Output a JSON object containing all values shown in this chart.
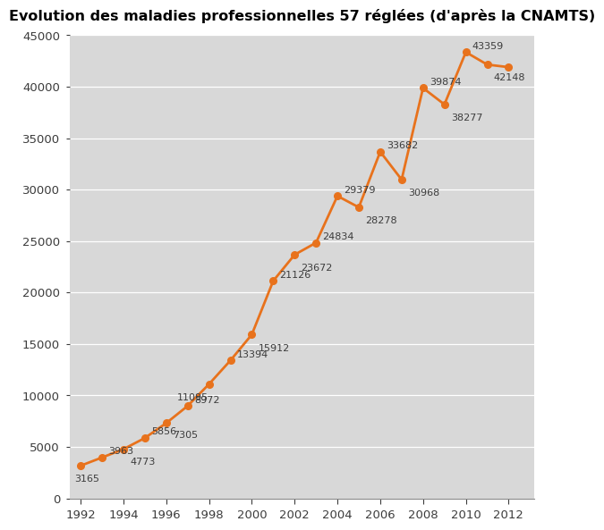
{
  "title": "Evolution des maladies professionnelles 57 réglées (d'après la CNAMTS)",
  "years": [
    1992,
    1993,
    1994,
    1995,
    1996,
    1997,
    1998,
    1999,
    2000,
    2001,
    2002,
    2003,
    2004,
    2005,
    2006,
    2007,
    2008,
    2009,
    2010,
    2011,
    2012
  ],
  "values": [
    3165,
    3963,
    4773,
    5856,
    7305,
    8972,
    11095,
    13394,
    15912,
    21126,
    23672,
    24834,
    29379,
    28278,
    33682,
    30968,
    39874,
    38277,
    43359,
    42148,
    41900
  ],
  "labels": [
    "3165",
    "3963",
    "4773",
    "5856",
    "7305",
    "8972",
    "11095",
    "13394",
    "15912",
    "21126",
    "23672",
    "24834",
    "29379",
    "28278",
    "33682",
    "30968",
    "39874",
    "38277",
    "43359",
    "42148",
    null
  ],
  "label_offsets_x": [
    -0.3,
    0.3,
    0.3,
    0.3,
    0.3,
    0.3,
    -1.5,
    0.3,
    0.3,
    0.3,
    0.3,
    0.3,
    0.3,
    0.3,
    0.3,
    0.3,
    0.3,
    0.3,
    0.3,
    0.3,
    0
  ],
  "label_offsets_y": [
    -1300,
    600,
    -1200,
    600,
    -1200,
    600,
    -1300,
    600,
    -1300,
    600,
    -1300,
    600,
    600,
    -1300,
    600,
    -1300,
    600,
    -1300,
    600,
    -1300,
    0
  ],
  "line_color": "#E8721C",
  "marker_color": "#E8721C",
  "bg_color": "#D8D8D8",
  "text_color": "#3C3C3C",
  "title_fontsize": 11.5,
  "label_fontsize": 8,
  "tick_fontsize": 9.5,
  "ylim": [
    0,
    45000
  ],
  "xlim": [
    1991.5,
    2013.2
  ],
  "yticks": [
    0,
    5000,
    10000,
    15000,
    20000,
    25000,
    30000,
    35000,
    40000,
    45000
  ],
  "xticks": [
    1992,
    1994,
    1996,
    1998,
    2000,
    2002,
    2004,
    2006,
    2008,
    2010,
    2012
  ]
}
